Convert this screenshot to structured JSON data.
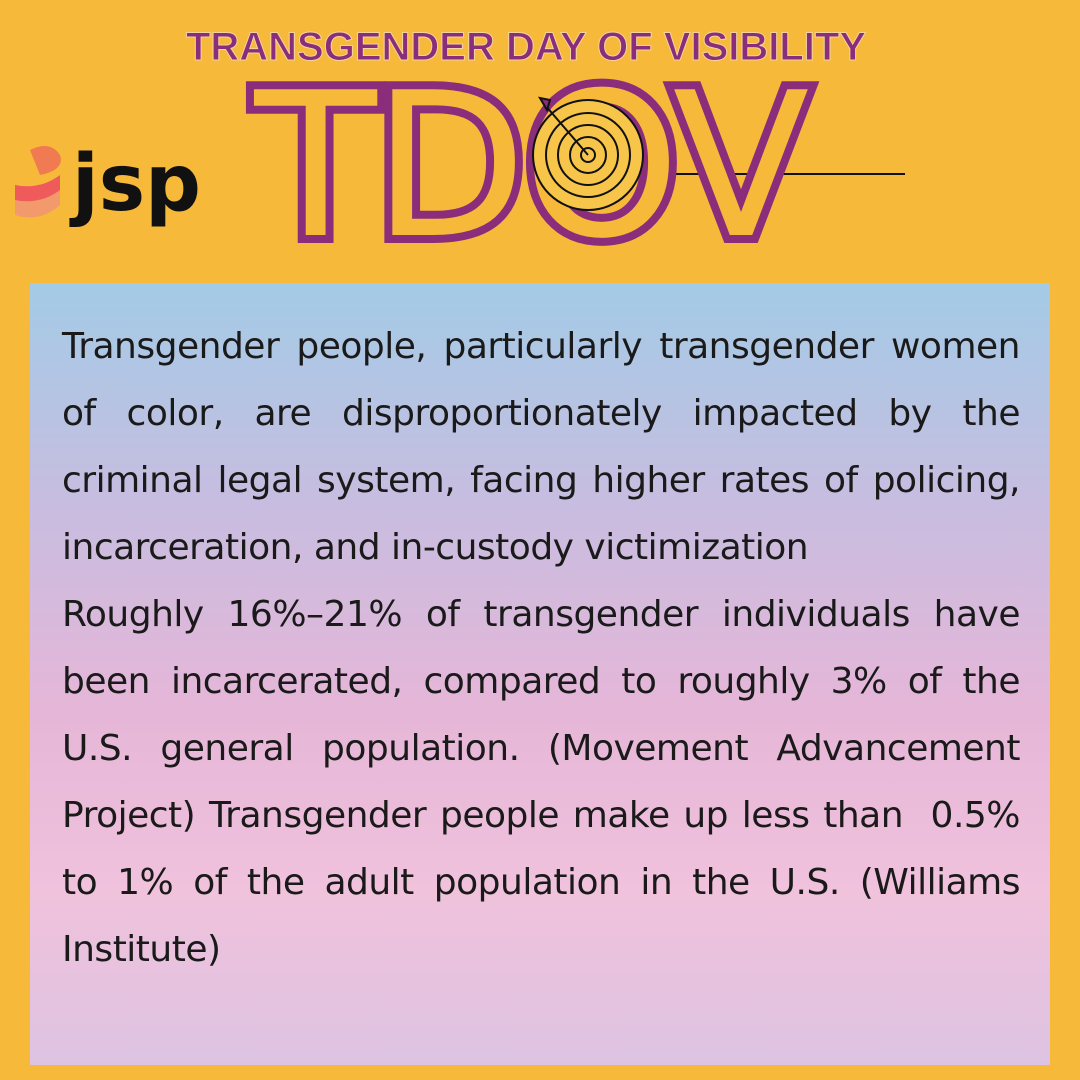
{
  "header": {
    "title": "TRANSGENDER DAY OF VISIBILITY",
    "logo": "jsp",
    "headline": "TDOV"
  },
  "body": {
    "paragraphs": [
      "Transgender people, particularly transgender women of color, are disproportionately impacted by the criminal legal system, facing higher rates of policing, incarceration, and in-custody victimization",
      "Roughly 16%–21% of transgender individuals have been incarcerated, compared to roughly 3% of the U.S. general population. (Movement Advancement Project) Transgender people make up less than  0.5% to 1% of the adult population in the U.S. (Williams Institute)"
    ]
  }
}
